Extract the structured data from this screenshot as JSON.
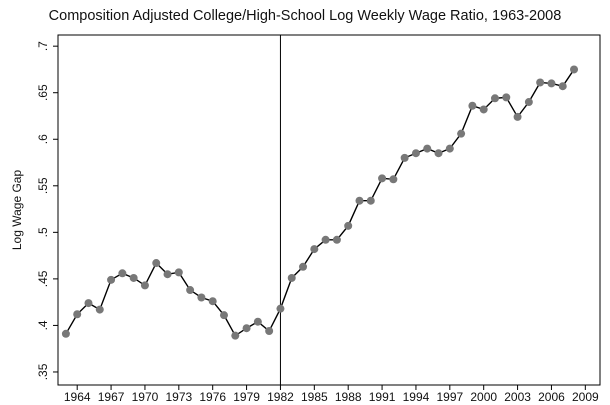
{
  "chart_data": {
    "type": "line",
    "title": "Composition Adjusted College/High-School Log Weekly Wage Ratio, 1963-2008",
    "y_label": "Log Wage Gap",
    "x": [
      1963,
      1964,
      1965,
      1966,
      1967,
      1968,
      1969,
      1970,
      1971,
      1972,
      1973,
      1974,
      1975,
      1976,
      1977,
      1978,
      1979,
      1980,
      1981,
      1982,
      1983,
      1984,
      1985,
      1986,
      1987,
      1988,
      1989,
      1990,
      1991,
      1992,
      1993,
      1994,
      1995,
      1996,
      1997,
      1998,
      1999,
      2000,
      2001,
      2002,
      2003,
      2004,
      2005,
      2006,
      2007,
      2008
    ],
    "series": [
      {
        "name": "Log Wage Gap",
        "color": "#000000",
        "marker_color": "#787878",
        "values": [
          0.391,
          0.412,
          0.424,
          0.417,
          0.449,
          0.456,
          0.451,
          0.443,
          0.467,
          0.455,
          0.457,
          0.438,
          0.43,
          0.426,
          0.411,
          0.389,
          0.397,
          0.404,
          0.394,
          0.418,
          0.451,
          0.463,
          0.482,
          0.492,
          0.492,
          0.507,
          0.534,
          0.534,
          0.558,
          0.557,
          0.58,
          0.585,
          0.59,
          0.585,
          0.59,
          0.606,
          0.636,
          0.632,
          0.644,
          0.645,
          0.624,
          0.64,
          0.661,
          0.66,
          0.657,
          0.675
        ]
      }
    ],
    "xlim": [
      1962.3,
      2010.3
    ],
    "xticks": [
      1964,
      1967,
      1970,
      1973,
      1976,
      1979,
      1982,
      1985,
      1988,
      1991,
      1994,
      1997,
      2000,
      2003,
      2006,
      2009
    ],
    "ylim": [
      0.336,
      0.712
    ],
    "yticks": [
      {
        "value": 0.35,
        "label": ".35"
      },
      {
        "value": 0.4,
        "label": ".4"
      },
      {
        "value": 0.45,
        "label": ".45"
      },
      {
        "value": 0.5,
        "label": ".5"
      },
      {
        "value": 0.55,
        "label": ".55"
      },
      {
        "value": 0.6,
        "label": ".6"
      },
      {
        "value": 0.65,
        "label": ".65"
      },
      {
        "value": 0.7,
        "label": ".7"
      }
    ],
    "vline": 1982,
    "grid": false
  }
}
